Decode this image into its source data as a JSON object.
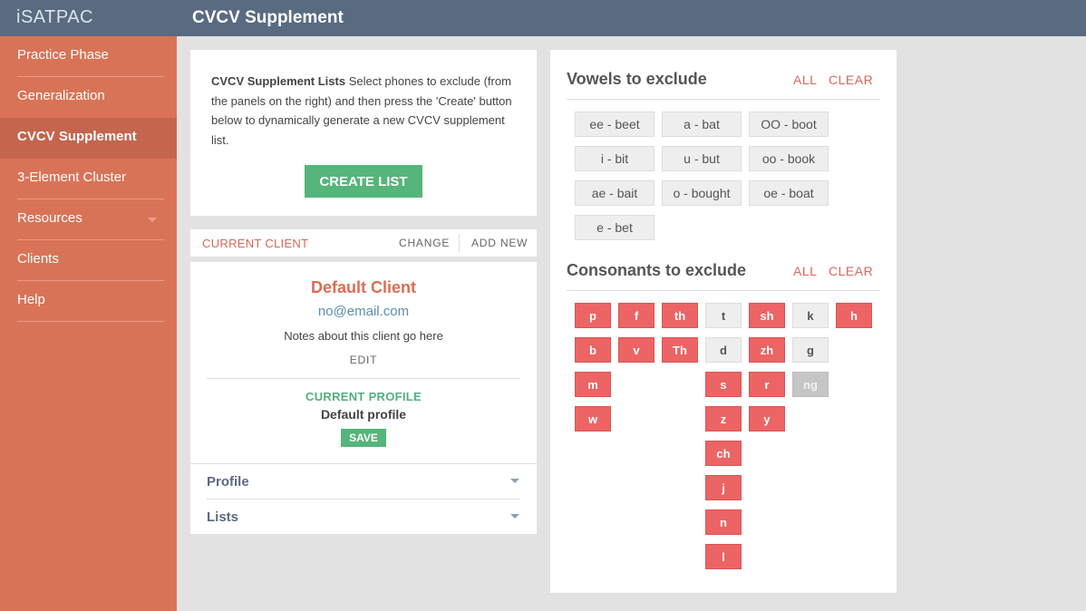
{
  "app_name": "iSATPAC",
  "page_title": "CVCV Supplement",
  "nav": [
    {
      "label": "Practice Phase",
      "active": false
    },
    {
      "label": "Generalization",
      "active": false
    },
    {
      "label": "CVCV Supplement",
      "active": true
    },
    {
      "label": "3-Element Cluster",
      "active": false
    },
    {
      "label": "Resources",
      "active": false,
      "dropdown": true
    },
    {
      "label": "Clients",
      "active": false
    },
    {
      "label": "Help",
      "active": false
    }
  ],
  "intro": {
    "bold": "CVCV Supplement Lists",
    "text": " Select phones to exclude (from the panels on the right) and then press the 'Create' button below to dynamically generate a new CVCV supplement list.",
    "button": "CREATE LIST"
  },
  "client": {
    "heading": "CURRENT CLIENT",
    "actions": [
      "CHANGE",
      "ADD NEW"
    ],
    "name": "Default Client",
    "email": "no@email.com",
    "notes": "Notes about this client go here",
    "edit": "EDIT",
    "profile_heading": "CURRENT PROFILE",
    "profile_name": "Default profile",
    "save": "SAVE",
    "sections": [
      "Profile",
      "Lists"
    ]
  },
  "vowels": {
    "title": "Vowels to exclude",
    "all": "ALL",
    "clear": "CLEAR",
    "items": [
      "ee - beet",
      "a - bat",
      "OO - boot",
      "i - bit",
      "u - but",
      "oo - book",
      "ae - bait",
      "o - bought",
      "oe - boat",
      "e - bet"
    ]
  },
  "consonants": {
    "title": "Consonants to exclude",
    "all": "ALL",
    "clear": "CLEAR",
    "columns": [
      [
        {
          "label": "p",
          "state": "selected"
        },
        {
          "label": "b",
          "state": "selected"
        },
        {
          "label": "m",
          "state": "selected"
        },
        {
          "label": "w",
          "state": "selected"
        }
      ],
      [
        {
          "label": "f",
          "state": "selected"
        },
        {
          "label": "v",
          "state": "selected"
        }
      ],
      [
        {
          "label": "th",
          "state": "selected"
        },
        {
          "label": "Th",
          "state": "selected"
        }
      ],
      [
        {
          "label": "t",
          "state": "unselected"
        },
        {
          "label": "d",
          "state": "unselected"
        },
        {
          "label": "s",
          "state": "selected"
        },
        {
          "label": "z",
          "state": "selected"
        },
        {
          "label": "ch",
          "state": "selected"
        },
        {
          "label": "j",
          "state": "selected"
        },
        {
          "label": "n",
          "state": "selected"
        },
        {
          "label": "l",
          "state": "selected"
        }
      ],
      [
        {
          "label": "sh",
          "state": "selected"
        },
        {
          "label": "zh",
          "state": "selected"
        },
        {
          "label": "r",
          "state": "selected"
        },
        {
          "label": "y",
          "state": "selected"
        }
      ],
      [
        {
          "label": "k",
          "state": "unselected"
        },
        {
          "label": "g",
          "state": "unselected"
        },
        {
          "label": "ng",
          "state": "disabled"
        }
      ],
      [
        {
          "label": "h",
          "state": "selected"
        }
      ]
    ]
  }
}
